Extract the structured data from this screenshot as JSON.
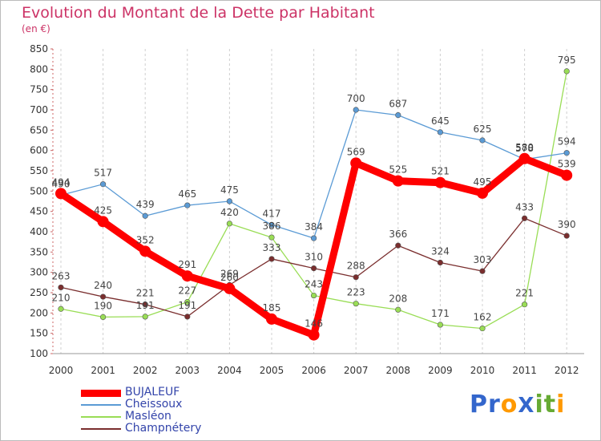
{
  "chart_data": {
    "type": "line",
    "title": "Evolution du Montant de la Dette par Habitant",
    "subtitle": "(en €)",
    "categories": [
      "2000",
      "2001",
      "2002",
      "2003",
      "2004",
      "2005",
      "2006",
      "2007",
      "2008",
      "2009",
      "2010",
      "2011",
      "2012"
    ],
    "ylim": [
      100,
      850
    ],
    "yticks": [
      100,
      150,
      200,
      250,
      300,
      350,
      400,
      450,
      500,
      550,
      600,
      650,
      700,
      750,
      800,
      850
    ],
    "grid": "vertical dashed",
    "legend_position": "bottom-left",
    "series": [
      {
        "name": "BUJALEUF",
        "color": "#ff0000",
        "values": [
          494,
          425,
          352,
          291,
          260,
          185,
          146,
          569,
          525,
          521,
          495,
          580,
          539
        ]
      },
      {
        "name": "Cheissoux",
        "color": "#5b9bd5",
        "values": [
          490,
          517,
          439,
          465,
          475,
          417,
          384,
          700,
          687,
          645,
          625,
          578,
          594
        ]
      },
      {
        "name": "Masléon",
        "color": "#99dd55",
        "values": [
          210,
          190,
          191,
          227,
          420,
          386,
          243,
          223,
          208,
          171,
          162,
          221,
          795
        ]
      },
      {
        "name": "Champnétery",
        "color": "#7a2e2e",
        "values": [
          263,
          240,
          221,
          191,
          269,
          333,
          310,
          288,
          366,
          324,
          303,
          433,
          390
        ]
      }
    ]
  },
  "logo": {
    "text": "ProXiti",
    "letters": [
      "P",
      "r",
      "o",
      "X",
      "i",
      "t",
      "i"
    ],
    "colors": [
      "#3366cc",
      "#3366cc",
      "#ff9900",
      "#3366cc",
      "#66aa33",
      "#66aa33",
      "#ff9900"
    ]
  }
}
